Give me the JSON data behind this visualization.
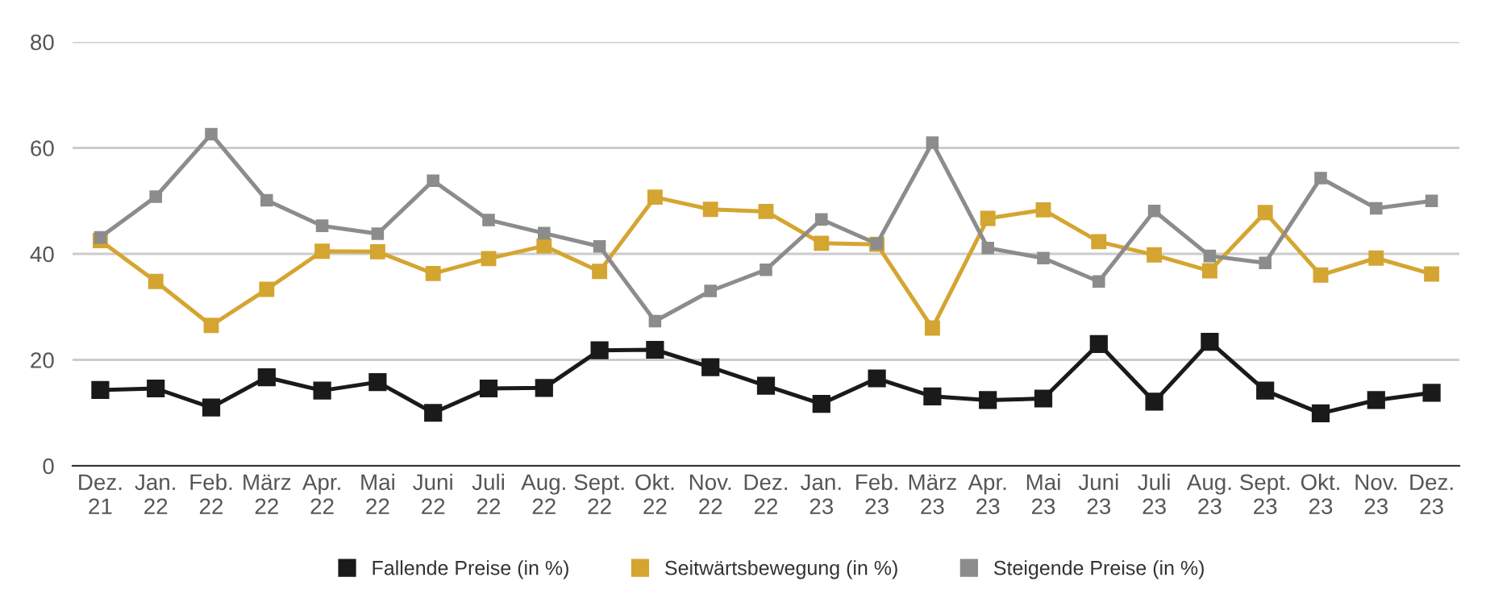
{
  "chart_data": {
    "type": "line",
    "categories": [
      "Dez.\n21",
      "Jan.\n22",
      "Feb.\n22",
      "März\n22",
      "Apr.\n22",
      "Mai\n22",
      "Juni\n22",
      "Juli\n22",
      "Aug.\n22",
      "Sept.\n22",
      "Okt.\n22",
      "Nov.\n22",
      "Dez.\n22",
      "Jan.\n23",
      "Feb.\n23",
      "März\n23",
      "Apr.\n23",
      "Mai\n23",
      "Juni\n23",
      "Juli\n23",
      "Aug.\n23",
      "Sept.\n23",
      "Okt.\n23",
      "Nov.\n23",
      "Dez.\n23"
    ],
    "series": [
      {
        "name": "Fallende Preise (in %)",
        "color": "#1a1a1a",
        "values": [
          14.3,
          14.6,
          11,
          16.7,
          14.2,
          15.8,
          10,
          14.6,
          14.7,
          21.8,
          21.9,
          18.6,
          15.1,
          11.7,
          16.5,
          13.1,
          12.4,
          12.7,
          23,
          12.1,
          23.4,
          14.2,
          9.9,
          12.4,
          13.8
        ]
      },
      {
        "name": "Seitwärtsbewegung (in %)",
        "color": "#d4a531",
        "values": [
          42.5,
          34.8,
          26.5,
          33.3,
          40.5,
          40.4,
          36.3,
          39.1,
          41.5,
          36.7,
          50.7,
          48.4,
          48,
          42,
          41.8,
          26,
          46.7,
          48.3,
          42.3,
          39.8,
          36.8,
          47.8,
          36,
          39.2,
          36.2
        ]
      },
      {
        "name": "Steigende Preise (in %)",
        "color": "#8c8c8c",
        "values": [
          43.1,
          50.8,
          62.6,
          50.1,
          45.3,
          43.8,
          53.8,
          46.4,
          43.9,
          41.4,
          27.3,
          33,
          37,
          46.5,
          41.9,
          61,
          41.1,
          39.2,
          34.8,
          48.1,
          39.6,
          38.3,
          54.3,
          48.6,
          50
        ]
      }
    ],
    "ylim": [
      0,
      80
    ],
    "yticks": [
      0,
      20,
      40,
      60,
      80
    ],
    "grid": "y",
    "legend": "bottom",
    "marker": "square",
    "line_style": "solid"
  }
}
